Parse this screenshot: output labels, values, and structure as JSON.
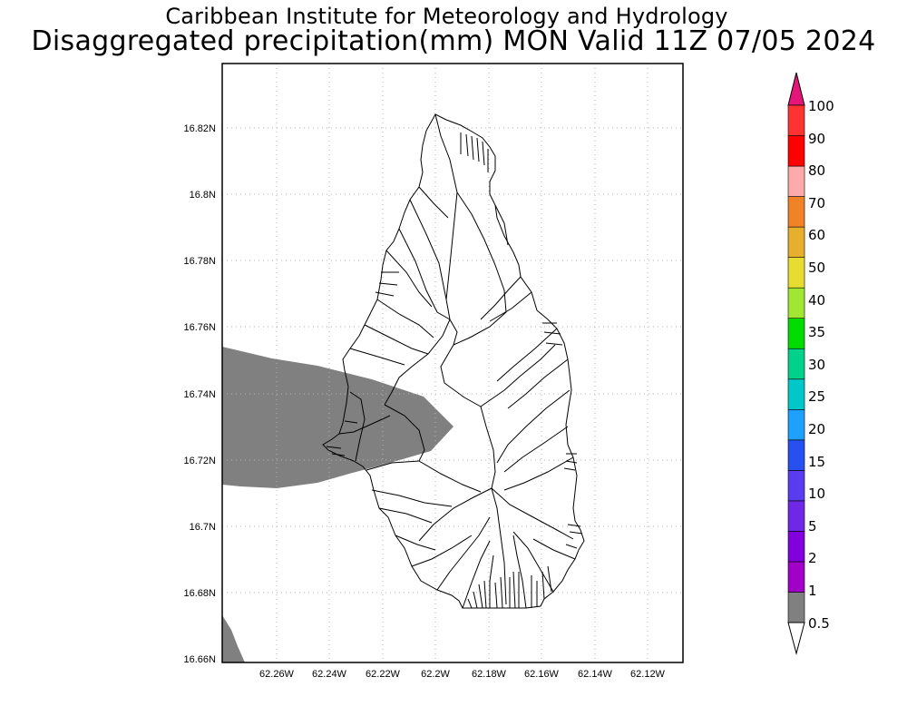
{
  "header": {
    "line1": "Caribbean Institute for Meteorology and Hydrology",
    "line2": "Disaggregated precipitation(mm) MON Valid 11Z 07/05 2024"
  },
  "map": {
    "lat_ticks": [
      "16.82N",
      "16.8N",
      "16.78N",
      "16.76N",
      "16.74N",
      "16.72N",
      "16.7N",
      "16.68N",
      "16.66N"
    ],
    "lon_ticks": [
      "62.26W",
      "62.24W",
      "62.22W",
      "62.2W",
      "62.18W",
      "62.16W",
      "62.14W",
      "62.12W"
    ],
    "shaded_class": "0.5-1 mm",
    "shade_color": "#808080"
  },
  "colorbar": {
    "labels": [
      "0.5",
      "1",
      "2",
      "5",
      "10",
      "15",
      "20",
      "25",
      "30",
      "35",
      "40",
      "50",
      "60",
      "70",
      "80",
      "90",
      "100"
    ],
    "colors": [
      "#808080",
      "#a000c8",
      "#8200dc",
      "#6e28e6",
      "#5a3cf0",
      "#2850f0",
      "#1ea0ff",
      "#00c8c8",
      "#00d28c",
      "#00dc00",
      "#a0e632",
      "#e6dc32",
      "#e6af2d",
      "#f08228",
      "#ffaaaa",
      "#ff0000",
      "#ff3232"
    ],
    "top_arrow_color": "#e6157a"
  }
}
